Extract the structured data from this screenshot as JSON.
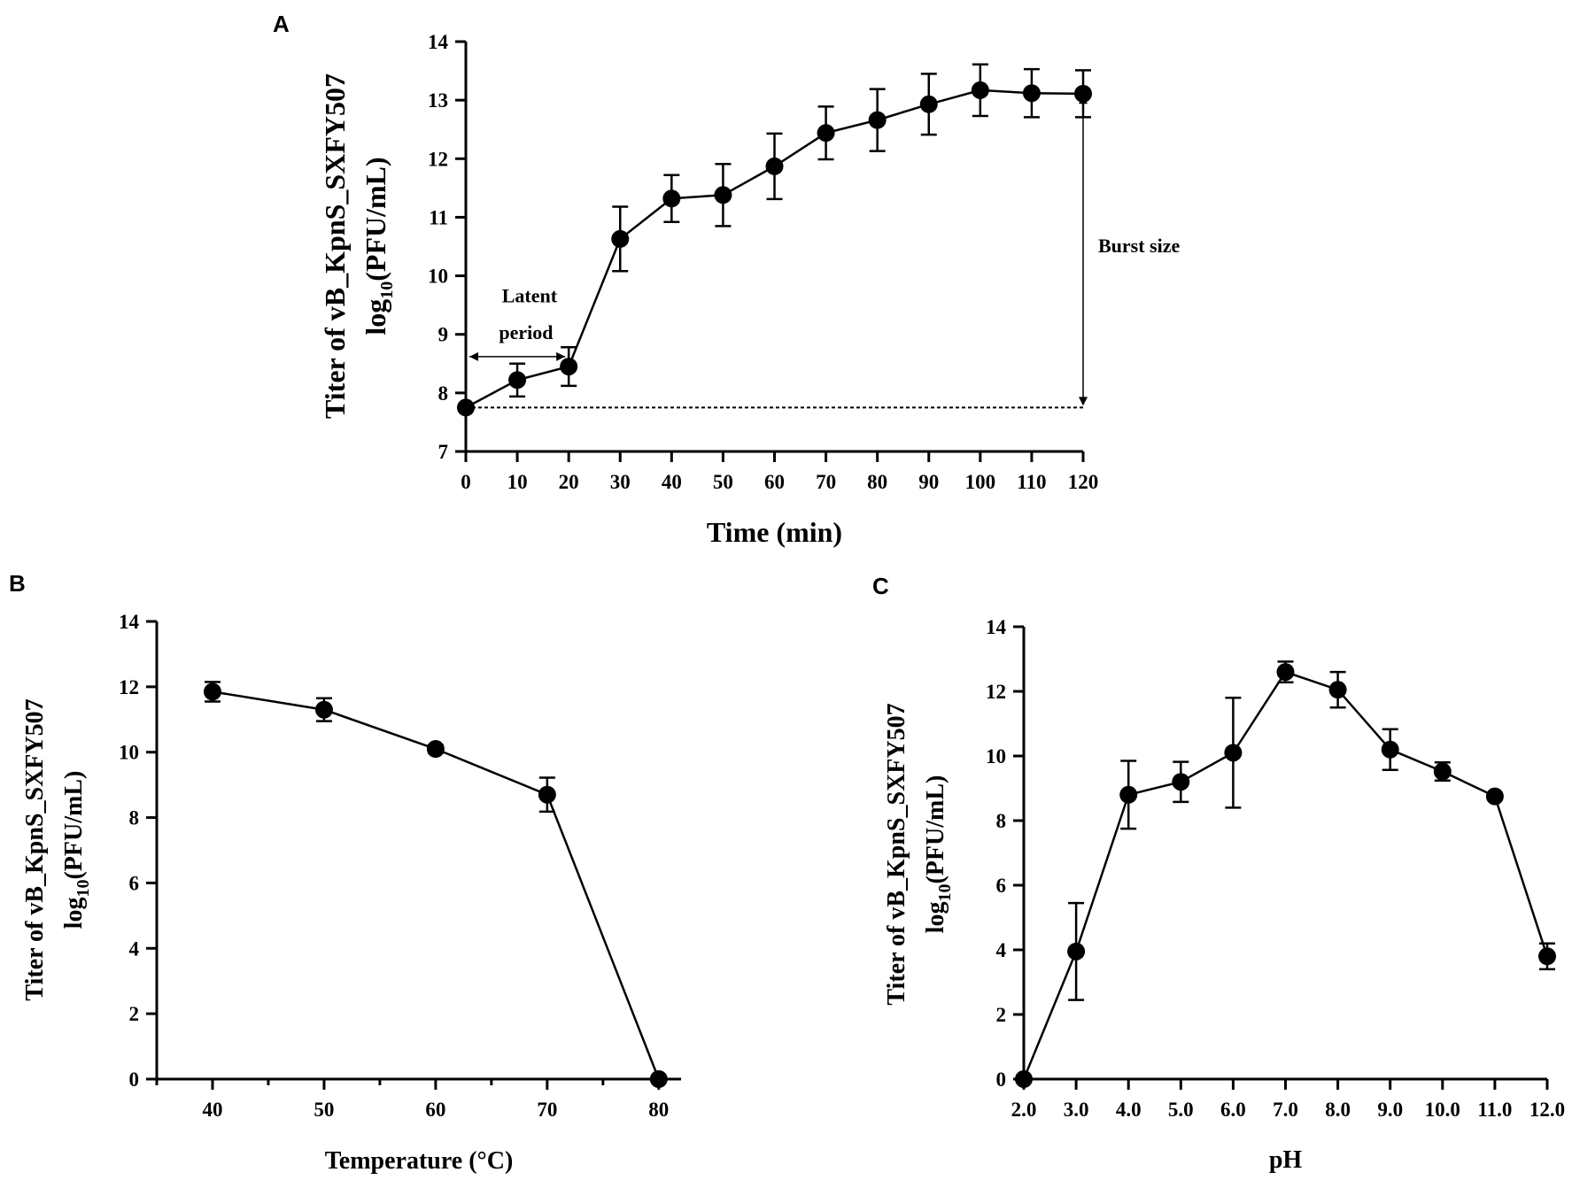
{
  "chart_data": [
    {
      "id": "A",
      "type": "line",
      "panel_label": "A",
      "xlabel": "Time (min)",
      "ylabel_line1": "Titer of vB_KpnS_SXFY507",
      "ylabel_prefix": "log",
      "ylabel_sub": "10",
      "ylabel_suffix": "(PFU/mL)",
      "xlim": [
        0,
        120
      ],
      "ylim": [
        7,
        14
      ],
      "xticks": [
        0,
        10,
        20,
        30,
        40,
        50,
        60,
        70,
        80,
        90,
        100,
        110,
        120
      ],
      "yticks": [
        7,
        8,
        9,
        10,
        11,
        12,
        13,
        14
      ],
      "x": [
        0,
        10,
        20,
        30,
        40,
        50,
        60,
        70,
        80,
        90,
        100,
        110,
        120
      ],
      "y": [
        7.75,
        8.22,
        8.45,
        10.63,
        11.32,
        11.38,
        11.87,
        12.44,
        12.66,
        12.93,
        13.17,
        13.12,
        13.11
      ],
      "err": [
        0.05,
        0.28,
        0.33,
        0.55,
        0.4,
        0.53,
        0.56,
        0.45,
        0.53,
        0.52,
        0.44,
        0.41,
        0.4
      ],
      "annotations": {
        "latent_line1": "Latent",
        "latent_line2": "period",
        "burst": "Burst size",
        "baseline_y": 7.75
      }
    },
    {
      "id": "B",
      "type": "line",
      "panel_label": "B",
      "xlabel": "Temperature (°C)",
      "ylabel_line1": "Titer of vB_KpnS_SXFY507",
      "ylabel_prefix": "log",
      "ylabel_sub": "10",
      "ylabel_suffix": "(PFU/mL)",
      "xlim": [
        35,
        82
      ],
      "ylim": [
        0,
        14
      ],
      "xticks": [
        40,
        50,
        60,
        70,
        80
      ],
      "yticks": [
        0,
        2,
        4,
        6,
        8,
        10,
        12,
        14
      ],
      "x": [
        40,
        50,
        60,
        70,
        80
      ],
      "y": [
        11.85,
        11.3,
        10.1,
        8.7,
        0
      ],
      "err": [
        0.3,
        0.35,
        0.12,
        0.52,
        0
      ]
    },
    {
      "id": "C",
      "type": "line",
      "panel_label": "C",
      "xlabel": "pH",
      "ylabel_line1": "Titer of vB_KpnS_SXFY507",
      "ylabel_prefix": "log",
      "ylabel_sub": "10",
      "ylabel_suffix": "(PFU/mL)",
      "xlim": [
        2,
        12
      ],
      "ylim": [
        0,
        14
      ],
      "xticks": [
        "2.0",
        "3.0",
        "4.0",
        "5.0",
        "6.0",
        "7.0",
        "8.0",
        "9.0",
        "10.0",
        "11.0",
        "12.0"
      ],
      "yticks": [
        0,
        2,
        4,
        6,
        8,
        10,
        12,
        14
      ],
      "x": [
        2,
        3,
        4,
        5,
        6,
        7,
        8,
        9,
        10,
        11,
        12
      ],
      "y": [
        0,
        3.95,
        8.8,
        9.2,
        10.1,
        12.6,
        12.05,
        10.2,
        9.52,
        8.75,
        3.8
      ],
      "err": [
        0,
        1.5,
        1.05,
        0.62,
        1.7,
        0.32,
        0.55,
        0.63,
        0.28,
        0.1,
        0.4
      ]
    }
  ]
}
